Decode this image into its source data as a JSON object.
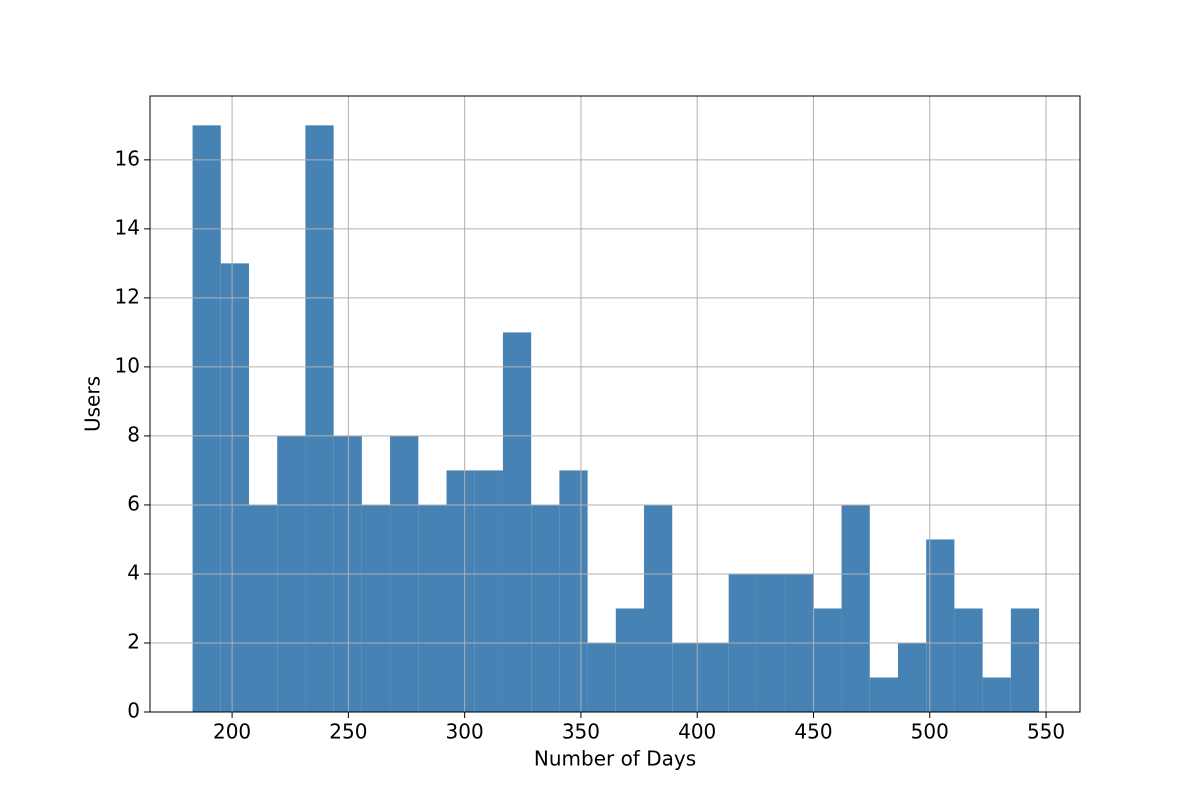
{
  "chart_data": {
    "type": "histogram",
    "xlabel": "Number of Days",
    "ylabel": "Users",
    "bins": [
      183.0,
      195.13,
      207.27,
      219.4,
      231.53,
      243.67,
      255.8,
      267.93,
      280.07,
      292.2,
      304.33,
      316.47,
      328.6,
      340.73,
      352.87,
      365.0,
      377.13,
      389.27,
      401.4,
      413.53,
      425.67,
      437.8,
      449.93,
      462.07,
      474.2,
      486.33,
      498.47,
      510.6,
      522.73,
      534.87,
      547.0
    ],
    "values": [
      17,
      13,
      6,
      8,
      17,
      8,
      6,
      8,
      6,
      7,
      7,
      11,
      6,
      7,
      2,
      3,
      6,
      2,
      2,
      4,
      4,
      4,
      3,
      6,
      1,
      2,
      5,
      3,
      1,
      3
    ],
    "color": "#4682b4",
    "xlim": [
      164.7,
      564.6
    ],
    "xticks": [
      200,
      250,
      300,
      350,
      400,
      450,
      500,
      550
    ],
    "ylim": [
      0,
      17.85
    ],
    "yticks": [
      0,
      2,
      4,
      6,
      8,
      10,
      12,
      14,
      16
    ],
    "grid": true
  }
}
